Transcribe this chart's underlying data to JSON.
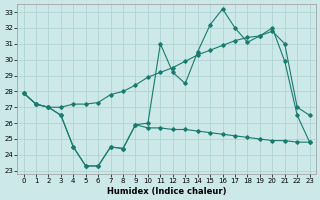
{
  "xlabel": "Humidex (Indice chaleur)",
  "xlim": [
    -0.5,
    23.5
  ],
  "ylim": [
    22.8,
    33.5
  ],
  "yticks": [
    23,
    24,
    25,
    26,
    27,
    28,
    29,
    30,
    31,
    32,
    33
  ],
  "xticks": [
    0,
    1,
    2,
    3,
    4,
    5,
    6,
    7,
    8,
    9,
    10,
    11,
    12,
    13,
    14,
    15,
    16,
    17,
    18,
    19,
    20,
    21,
    22,
    23
  ],
  "bg_color": "#cce8e8",
  "grid_color": "#aacfcf",
  "line_color": "#1a7a6e",
  "line1_x": [
    0,
    1,
    2,
    3,
    4,
    5,
    6,
    7,
    8,
    9,
    10,
    11,
    12,
    13,
    14,
    15,
    16,
    17,
    18,
    19,
    20,
    21,
    22,
    23
  ],
  "line1_y": [
    27.9,
    27.2,
    27.0,
    26.5,
    24.5,
    23.3,
    23.3,
    24.5,
    24.4,
    25.9,
    26.0,
    31.0,
    29.2,
    28.5,
    30.5,
    32.2,
    33.2,
    32.0,
    31.1,
    31.5,
    32.0,
    29.9,
    26.5,
    24.8
  ],
  "line2_x": [
    0,
    1,
    2,
    3,
    4,
    5,
    6,
    7,
    8,
    9,
    10,
    11,
    12,
    13,
    14,
    15,
    16,
    17,
    18,
    19,
    20,
    21,
    22,
    23
  ],
  "line2_y": [
    27.9,
    27.2,
    27.0,
    27.0,
    27.2,
    27.2,
    27.3,
    27.8,
    28.0,
    28.4,
    28.9,
    29.2,
    29.5,
    29.9,
    30.3,
    30.6,
    30.9,
    31.2,
    31.4,
    31.5,
    31.8,
    31.0,
    27.0,
    26.5
  ],
  "line3_x": [
    0,
    1,
    2,
    3,
    4,
    5,
    6,
    7,
    8,
    9,
    10,
    11,
    12,
    13,
    14,
    15,
    16,
    17,
    18,
    19,
    20,
    21,
    22,
    23
  ],
  "line3_y": [
    27.9,
    27.2,
    27.0,
    26.5,
    24.5,
    23.3,
    23.3,
    24.5,
    24.4,
    25.9,
    25.7,
    25.7,
    25.6,
    25.6,
    25.5,
    25.4,
    25.3,
    25.2,
    25.1,
    25.0,
    24.9,
    24.9,
    24.8,
    24.8
  ],
  "figsize": [
    3.2,
    2.0
  ],
  "dpi": 100
}
